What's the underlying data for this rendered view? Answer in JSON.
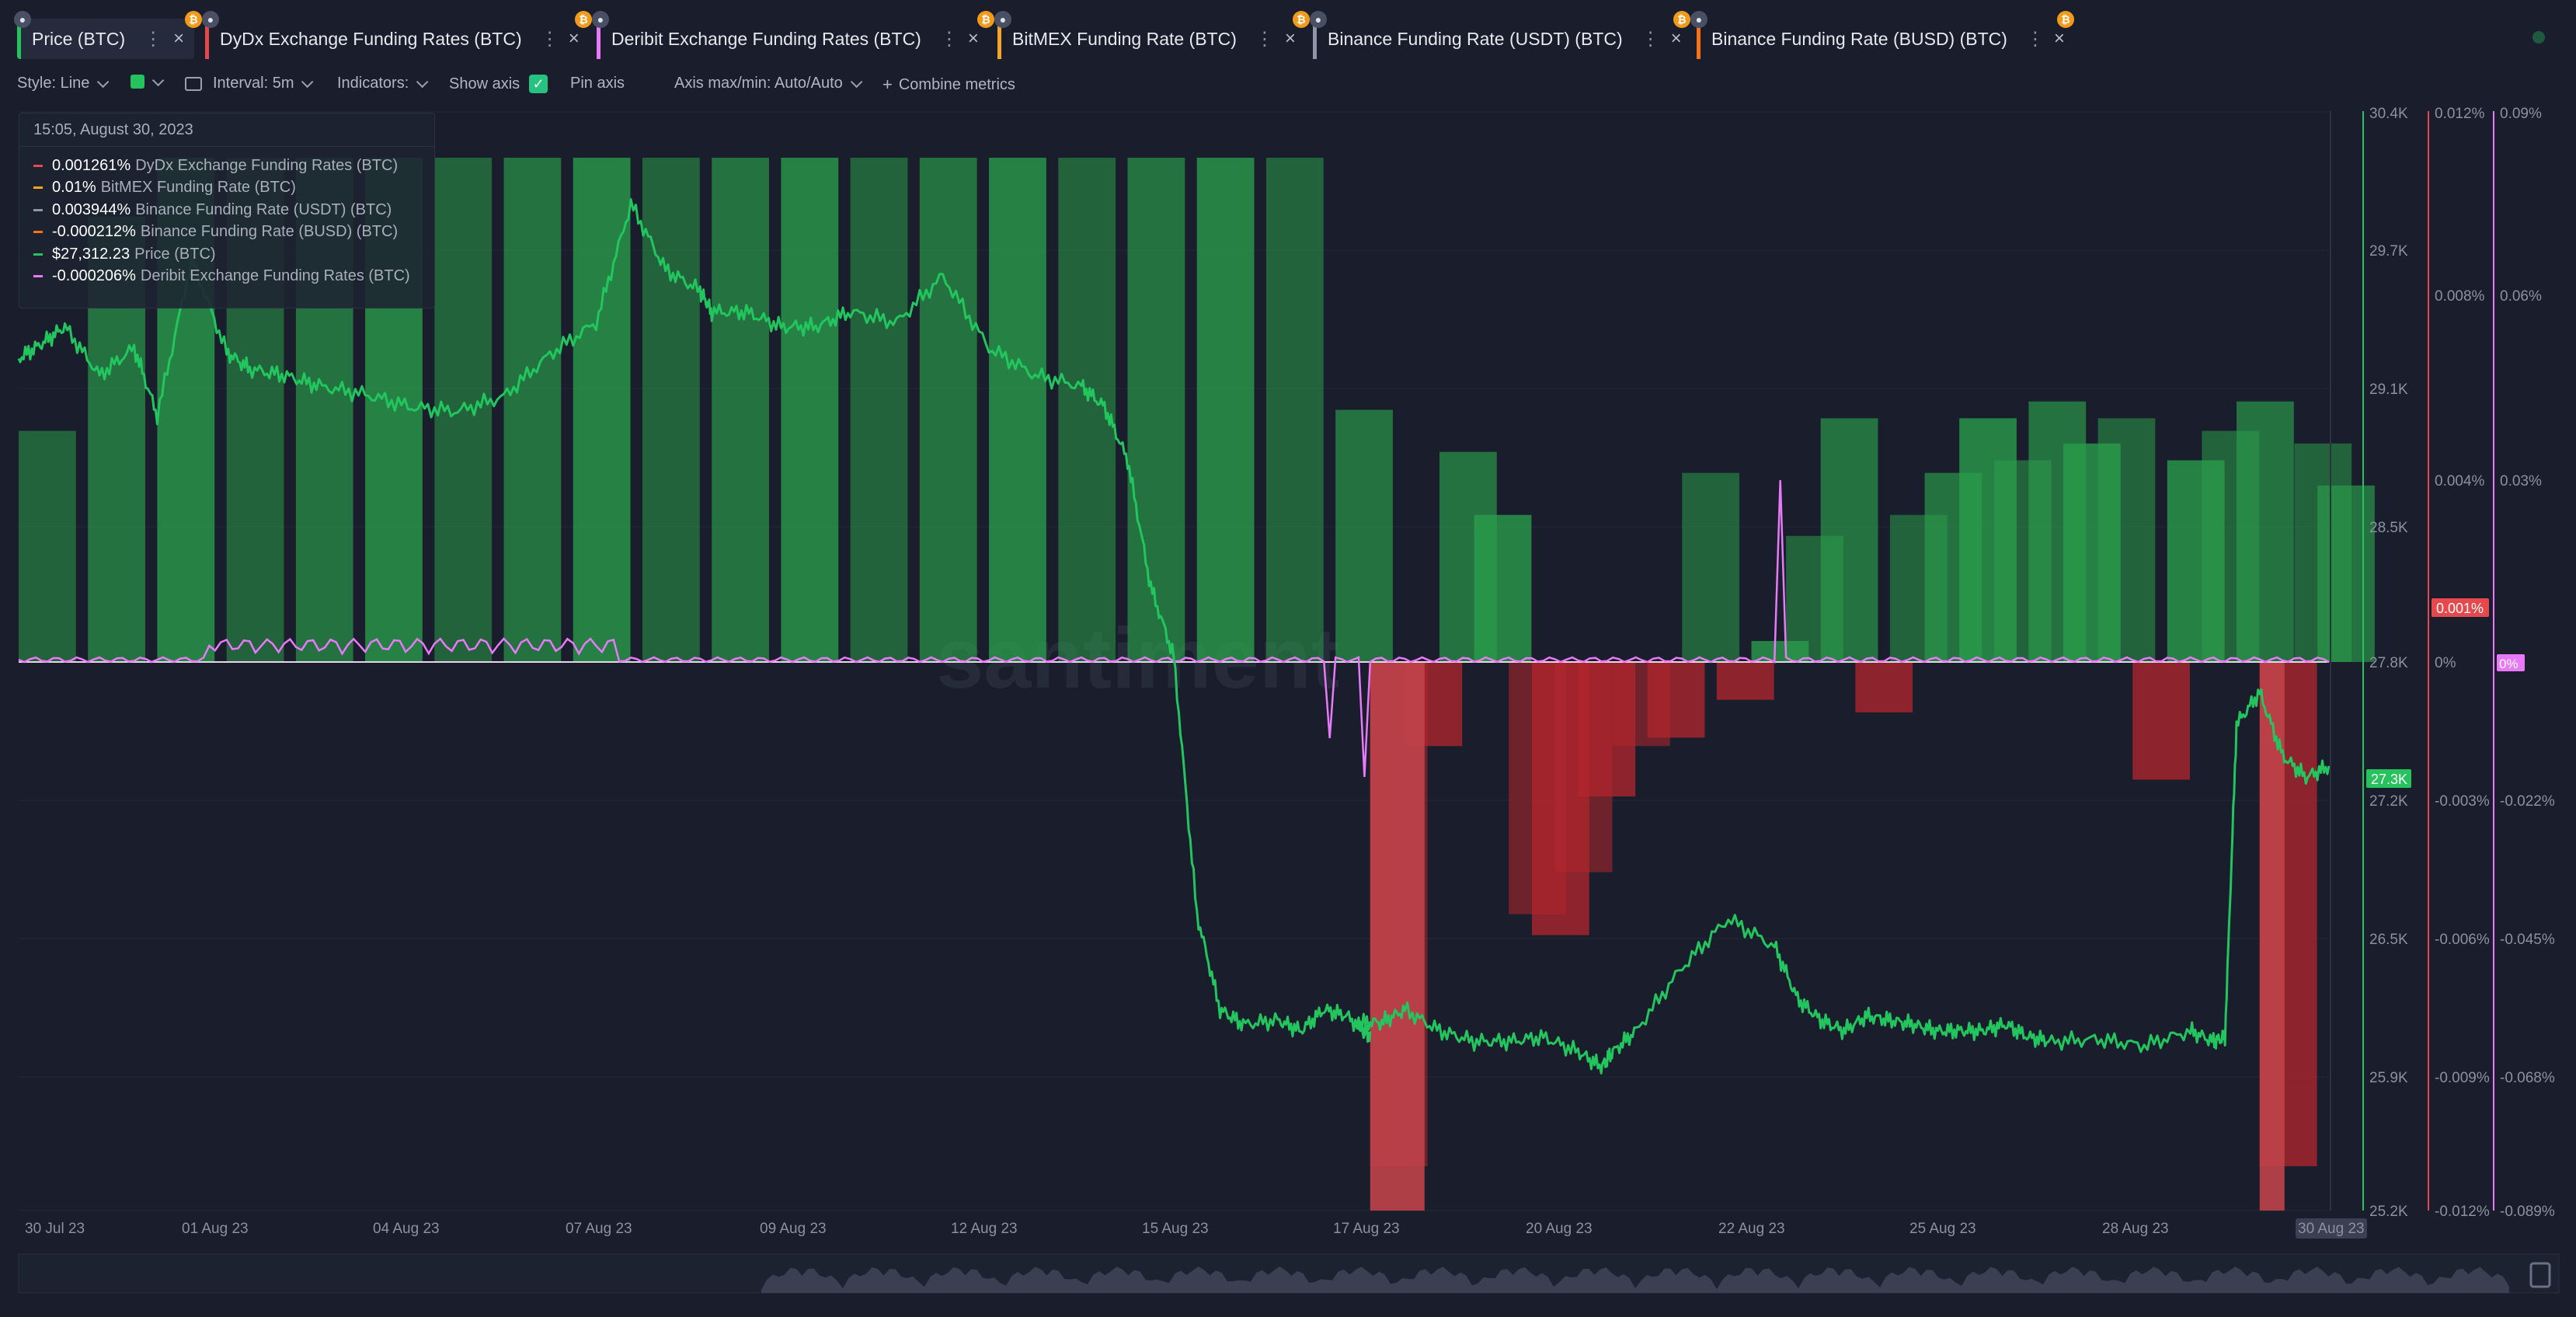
{
  "tabs": [
    {
      "label": "Price (BTC)",
      "color": "#26c25e",
      "active": true
    },
    {
      "label": "DyDx Exchange Funding Rates (BTC)",
      "color": "#e5484d"
    },
    {
      "label": "Deribit Exchange Funding Rates (BTC)",
      "color": "#e879f9"
    },
    {
      "label": "BitMEX Funding Rate (BTC)",
      "color": "#f5a524"
    },
    {
      "label": "Binance Funding Rate (USDT) (BTC)",
      "color": "#8e96a8"
    },
    {
      "label": "Binance Funding Rate (BUSD) (BTC)",
      "color": "#f97316"
    }
  ],
  "tab_ui": {
    "menu_glyph": "⋮",
    "close_glyph": "×",
    "lock_glyph": "🔒",
    "btc_glyph": "₿"
  },
  "toolbar": {
    "style": "Style: Line",
    "interval": "Interval: 5m",
    "indicators": "Indicators:",
    "show_axis": "Show axis",
    "pin_axis": "Pin axis",
    "axis_range": "Axis max/min: Auto/Auto",
    "combine": "Combine metrics",
    "plus_glyph": "+",
    "check_glyph": "✓",
    "series_color": "#26c25e"
  },
  "legend": {
    "timestamp": "15:05, August 30, 2023",
    "rows": [
      {
        "value": "0.001261%",
        "name": "DyDx Exchange Funding Rates (BTC)",
        "color": "#e5484d"
      },
      {
        "value": "0.01%",
        "name": "BitMEX Funding Rate (BTC)",
        "color": "#f5a524"
      },
      {
        "value": "0.003944%",
        "name": "Binance Funding Rate (USDT) (BTC)",
        "color": "#8e96a8"
      },
      {
        "value": "-0.000212%",
        "name": "Binance Funding Rate (BUSD) (BTC)",
        "color": "#f97316"
      },
      {
        "value": "$27,312.23",
        "name": "Price (BTC)",
        "color": "#26c25e"
      },
      {
        "value": "-0.000206%",
        "name": "Deribit Exchange Funding Rates (BTC)",
        "color": "#e879f9"
      }
    ]
  },
  "chart_data": {
    "type": "line",
    "watermark": "santiment",
    "x_ticks": [
      "30 Jul 23",
      "01 Aug 23",
      "04 Aug 23",
      "07 Aug 23",
      "09 Aug 23",
      "12 Aug 23",
      "15 Aug 23",
      "17 Aug 23",
      "20 Aug 23",
      "22 Aug 23",
      "25 Aug 23",
      "28 Aug 23",
      "30 Aug 23"
    ],
    "y_axes": [
      {
        "name": "Price (BTC)",
        "color": "#26c25e",
        "ticks": [
          "30.4K",
          "29.7K",
          "29.1K",
          "28.5K",
          "27.8K",
          "27.2K",
          "26.5K",
          "25.9K",
          "25.2K"
        ],
        "current": "27.3K"
      },
      {
        "name": "DyDx Exchange Funding Rates (BTC)",
        "color": "#e5484d",
        "ticks": [
          "0.012%",
          "0.008%",
          "0.004%",
          "0.001%",
          "0%",
          "-0.003%",
          "-0.006%",
          "-0.009%",
          "-0.012%"
        ],
        "current": "0.001%"
      },
      {
        "name": "Deribit Exchange Funding Rates (BTC)",
        "color": "#e879f9",
        "ticks": [
          "0.09%",
          "0.06%",
          "0.03%",
          "0%",
          "-0.022%",
          "-0.045%",
          "-0.068%",
          "-0.089%"
        ],
        "current": "0%"
      }
    ],
    "price_series": {
      "name": "Price (BTC)",
      "x": [
        0,
        0.01,
        0.02,
        0.035,
        0.05,
        0.06,
        0.075,
        0.09,
        0.1,
        0.115,
        0.13,
        0.15,
        0.17,
        0.19,
        0.21,
        0.23,
        0.25,
        0.265,
        0.28,
        0.295,
        0.3,
        0.315,
        0.33,
        0.345,
        0.36,
        0.38,
        0.4,
        0.42,
        0.44,
        0.46,
        0.47,
        0.48,
        0.49,
        0.5,
        0.51,
        0.52,
        0.53,
        0.545,
        0.555,
        0.565,
        0.575,
        0.585,
        0.58,
        0.59,
        0.6,
        0.615,
        0.63,
        0.645,
        0.66,
        0.675,
        0.685,
        0.69,
        0.7,
        0.72,
        0.74,
        0.76,
        0.77,
        0.78,
        0.79,
        0.8,
        0.81,
        0.82,
        0.83,
        0.84,
        0.85,
        0.86,
        0.87,
        0.88,
        0.9,
        0.92,
        0.94,
        0.95,
        0.955,
        0.96,
        0.97,
        0.98,
        0.99,
        1.0
      ],
      "y": [
        29230,
        29300,
        29380,
        29150,
        29280,
        28960,
        29700,
        29260,
        29180,
        29150,
        29100,
        29060,
        29000,
        28980,
        29050,
        29250,
        29400,
        29960,
        29650,
        29550,
        29450,
        29450,
        29380,
        29380,
        29450,
        29400,
        29620,
        29280,
        29150,
        29100,
        29000,
        28750,
        28150,
        27820,
        26600,
        26150,
        26080,
        26100,
        26050,
        26150,
        26120,
        26020,
        26090,
        26090,
        26150,
        26050,
        26000,
        26000,
        26020,
        25950,
        25880,
        25950,
        26050,
        26350,
        26580,
        26450,
        26200,
        26100,
        26050,
        26120,
        26100,
        26080,
        26050,
        26050,
        26050,
        26080,
        26020,
        26000,
        26010,
        25980,
        26050,
        26000,
        26020,
        27500,
        27650,
        27350,
        27250,
        27300
      ],
      "line_color": "#22c55e",
      "y_range": [
        25200,
        30400
      ]
    },
    "rate_bars": [
      {
        "x": 0.0,
        "v": 0.0055
      },
      {
        "x": 0.03,
        "v": 0.0106
      },
      {
        "x": 0.06,
        "v": 0.012
      },
      {
        "x": 0.09,
        "v": 0.012
      },
      {
        "x": 0.12,
        "v": 0.012
      },
      {
        "x": 0.15,
        "v": 0.012
      },
      {
        "x": 0.18,
        "v": 0.012
      },
      {
        "x": 0.21,
        "v": 0.012
      },
      {
        "x": 0.24,
        "v": 0.012
      },
      {
        "x": 0.27,
        "v": 0.012
      },
      {
        "x": 0.3,
        "v": 0.012
      },
      {
        "x": 0.33,
        "v": 0.012
      },
      {
        "x": 0.36,
        "v": 0.012
      },
      {
        "x": 0.39,
        "v": 0.012
      },
      {
        "x": 0.42,
        "v": 0.012
      },
      {
        "x": 0.45,
        "v": 0.012
      },
      {
        "x": 0.48,
        "v": 0.012
      },
      {
        "x": 0.51,
        "v": 0.012
      },
      {
        "x": 0.54,
        "v": 0.012
      },
      {
        "x": 0.57,
        "v": 0.006
      },
      {
        "x": 0.585,
        "v": -0.012
      },
      {
        "x": 0.6,
        "v": -0.002
      },
      {
        "x": 0.615,
        "v": 0.005
      },
      {
        "x": 0.63,
        "v": 0.0035
      },
      {
        "x": 0.645,
        "v": -0.006
      },
      {
        "x": 0.655,
        "v": -0.0065
      },
      {
        "x": 0.665,
        "v": -0.005
      },
      {
        "x": 0.675,
        "v": -0.0032
      },
      {
        "x": 0.69,
        "v": -0.002
      },
      {
        "x": 0.705,
        "v": -0.0018
      },
      {
        "x": 0.72,
        "v": 0.0045
      },
      {
        "x": 0.735,
        "v": -0.0009
      },
      {
        "x": 0.75,
        "v": 0.0005
      },
      {
        "x": 0.765,
        "v": 0.003
      },
      {
        "x": 0.78,
        "v": 0.0058
      },
      {
        "x": 0.795,
        "v": -0.0012
      },
      {
        "x": 0.81,
        "v": 0.0035
      },
      {
        "x": 0.825,
        "v": 0.0045
      },
      {
        "x": 0.84,
        "v": 0.0058
      },
      {
        "x": 0.855,
        "v": 0.0048
      },
      {
        "x": 0.87,
        "v": 0.0062
      },
      {
        "x": 0.885,
        "v": 0.0052
      },
      {
        "x": 0.9,
        "v": 0.0058
      },
      {
        "x": 0.915,
        "v": -0.0028
      },
      {
        "x": 0.93,
        "v": 0.0048
      },
      {
        "x": 0.945,
        "v": 0.0055
      },
      {
        "x": 0.96,
        "v": 0.0062
      },
      {
        "x": 0.97,
        "v": -0.012
      },
      {
        "x": 0.985,
        "v": 0.0052
      },
      {
        "x": 0.995,
        "v": 0.0042
      }
    ],
    "rate_range": [
      -0.012,
      0.012
    ],
    "colors": {
      "pos": "#2a9d4b",
      "neg": "#b3262e",
      "grid": "#232837",
      "axis_text": "#8b91a0",
      "deribit": "#e879f9"
    }
  }
}
